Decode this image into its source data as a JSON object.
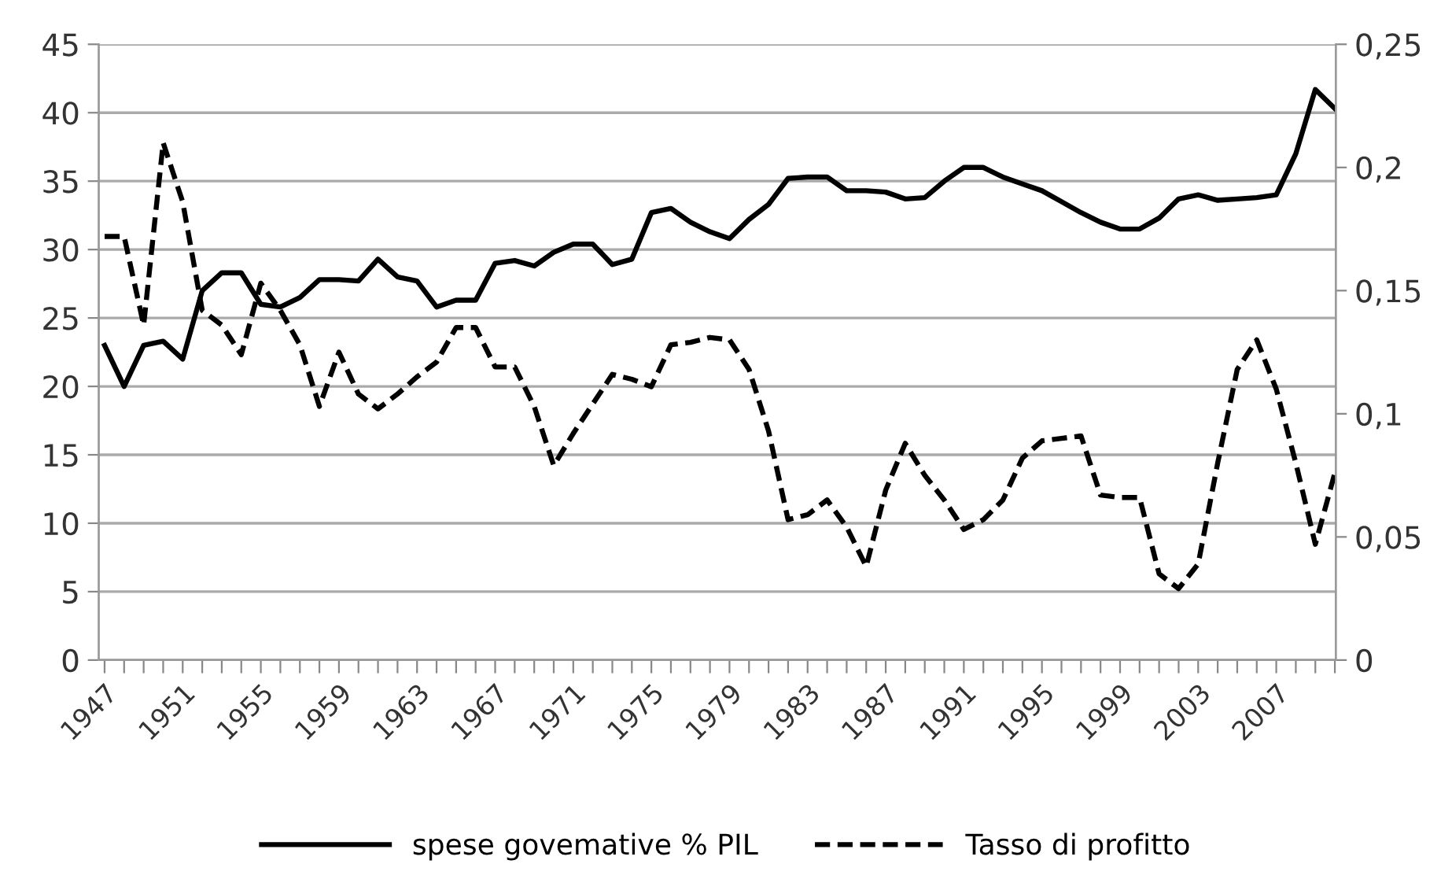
{
  "chart_data": {
    "type": "line",
    "categories": [
      "1947",
      null,
      null,
      null,
      "1951",
      null,
      null,
      null,
      "1955",
      null,
      null,
      null,
      "1959",
      null,
      null,
      null,
      "1963",
      null,
      null,
      null,
      "1967",
      null,
      null,
      null,
      "1971",
      null,
      null,
      null,
      "1975",
      null,
      null,
      null,
      "1979",
      null,
      null,
      null,
      "1983",
      null,
      null,
      null,
      "1987",
      null,
      null,
      null,
      "1991",
      null,
      null,
      null,
      "1995",
      null,
      null,
      null,
      "1999",
      null,
      null,
      null,
      "2003",
      null,
      null,
      null,
      "2007",
      null,
      null,
      null
    ],
    "series": [
      {
        "name": "spese govemative % PIL",
        "color": "#000000",
        "line_style": "solid",
        "values": [
          23,
          20,
          23,
          23.3,
          22,
          27,
          28.3,
          28.3,
          26,
          25.8,
          26.5,
          27.8,
          27.8,
          27.7,
          29.3,
          28,
          27.7,
          25.8,
          26.3,
          26.3,
          29,
          29.2,
          28.8,
          29.8,
          30.4,
          30.4,
          28.9,
          29.3,
          32.7,
          33,
          32,
          31.3,
          30.8,
          32.2,
          33.3,
          35.2,
          35.3,
          35.3,
          34.3,
          34.3,
          34.2,
          33.7,
          33.8,
          35,
          36,
          36,
          35.3,
          34.8,
          34.3,
          33.5,
          32.7,
          32,
          31.5,
          31.5,
          32.3,
          33.7,
          34,
          33.6,
          33.7,
          33.8,
          34,
          37,
          41.7,
          40.3
        ]
      },
      {
        "name": "Tasso di profitto",
        "color": "#000000",
        "line_style": "dashed",
        "axis": "y2",
        "values": [
          0.172,
          0.172,
          0.136,
          0.21,
          0.186,
          0.142,
          0.136,
          0.124,
          0.153,
          0.142,
          0.128,
          0.103,
          0.125,
          0.108,
          0.102,
          0.108,
          0.115,
          0.121,
          0.135,
          0.135,
          0.119,
          0.119,
          0.103,
          0.079,
          0.092,
          0.104,
          0.116,
          0.114,
          0.111,
          0.128,
          0.129,
          0.131,
          0.13,
          0.118,
          0.093,
          0.057,
          0.059,
          0.065,
          0.054,
          0.038,
          0.069,
          0.088,
          0.075,
          0.065,
          0.053,
          0.057,
          0.065,
          0.082,
          0.089,
          0.09,
          0.091,
          0.067,
          0.066,
          0.066,
          0.035,
          0.029,
          0.039,
          0.08,
          0.118,
          0.13,
          0.11,
          0.08,
          0.047,
          0.076
        ]
      }
    ],
    "ylim": [
      0,
      45
    ],
    "yticks": [
      0,
      5,
      10,
      15,
      20,
      25,
      30,
      35,
      40,
      45
    ],
    "y2lim": [
      0,
      0.25
    ],
    "y2ticks": [
      0,
      {
        "value": 0.05,
        "label": "0,05"
      },
      {
        "value": 0.1,
        "label": "0,1"
      },
      {
        "value": 0.15,
        "label": "0,15"
      },
      {
        "value": 0.2,
        "label": "0,2"
      },
      {
        "value": 0.25,
        "label": "0,25"
      }
    ],
    "grid": "y",
    "legend": "bottom",
    "marker": "none"
  }
}
